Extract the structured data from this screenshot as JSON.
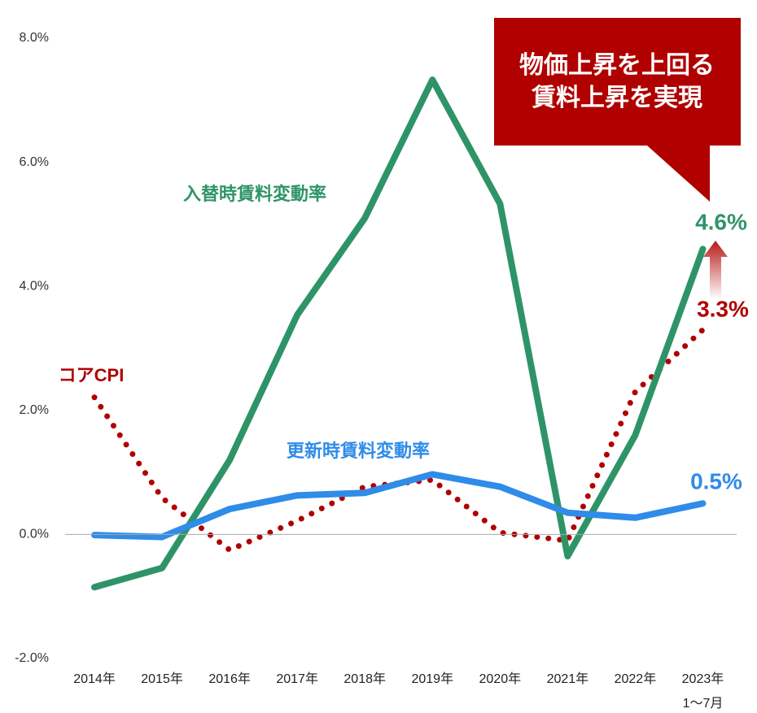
{
  "chart_data": {
    "type": "line",
    "annotation": [
      "物価上昇を上回る",
      "賃料上昇を実現"
    ],
    "categories": [
      "2014年",
      "2015年",
      "2016年",
      "2017年",
      "2018年",
      "2019年",
      "2020年",
      "2021年",
      "2022年",
      "2023年"
    ],
    "x_sublabels": [
      null,
      null,
      null,
      null,
      null,
      null,
      null,
      null,
      null,
      "1〜7月"
    ],
    "series": [
      {
        "name": "入替時賃料変動率",
        "color": "#2e9467",
        "style": "solid",
        "values": [
          -0.85,
          -0.54,
          1.2,
          3.54,
          5.1,
          7.33,
          5.33,
          -0.35,
          1.6,
          4.6
        ],
        "value_labels": [
          null,
          null,
          null,
          null,
          null,
          null,
          null,
          null,
          null,
          "4.6%"
        ]
      },
      {
        "name": "更新時賃料変動率",
        "color": "#2f8ce8",
        "style": "solid",
        "values": [
          -0.01,
          -0.04,
          0.41,
          0.63,
          0.67,
          0.97,
          0.77,
          0.35,
          0.27,
          0.5
        ],
        "value_labels": [
          null,
          null,
          null,
          null,
          null,
          null,
          null,
          null,
          null,
          "0.5%"
        ]
      },
      {
        "name": "コアCPI",
        "color": "#b00000",
        "style": "dotted",
        "values": [
          2.21,
          0.59,
          -0.25,
          0.22,
          0.77,
          0.88,
          0.03,
          -0.1,
          2.3,
          3.3
        ],
        "value_labels": [
          null,
          null,
          null,
          null,
          null,
          null,
          null,
          null,
          null,
          "3.3%"
        ]
      }
    ],
    "ylim": [
      -2,
      8
    ],
    "yticks": [
      {
        "value": -2,
        "label": "-2.0%"
      },
      {
        "value": 0,
        "label": "0.0%"
      },
      {
        "value": 2,
        "label": "2.0%"
      },
      {
        "value": 4,
        "label": "4.0%"
      },
      {
        "value": 6,
        "label": "6.0%"
      },
      {
        "value": 8,
        "label": "8.0%"
      }
    ],
    "grid": false,
    "zero_line": true
  }
}
